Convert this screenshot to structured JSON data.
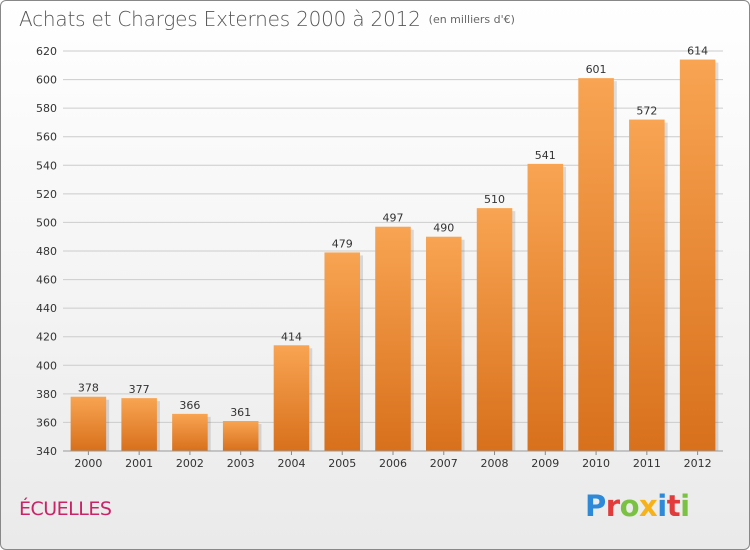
{
  "header": {
    "title": "Achats et Charges Externes 2000 à 2012",
    "subtitle": "(en milliers d'€)"
  },
  "footer": {
    "town": "ÉCUELLES",
    "logo_text": "Proxiti",
    "logo_letter_colors": [
      "#2e8ad8",
      "#e23b3b",
      "#7cc242",
      "#f7b219",
      "#2e8ad8",
      "#e23b3b",
      "#7cc242"
    ]
  },
  "colors": {
    "bar_top": "#f8a452",
    "bar_bottom": "#d8701c",
    "grid": "#cccccc",
    "axis_text": "#333333"
  },
  "chart_data": {
    "type": "bar",
    "categories": [
      "2000",
      "2001",
      "2002",
      "2003",
      "2004",
      "2005",
      "2006",
      "2007",
      "2008",
      "2009",
      "2010",
      "2011",
      "2012"
    ],
    "values": [
      378,
      377,
      366,
      361,
      414,
      479,
      497,
      490,
      510,
      541,
      601,
      572,
      614
    ],
    "title": "Achats et Charges Externes 2000 à 2012",
    "subtitle": "(en milliers d'€)",
    "xlabel": "",
    "ylabel": "",
    "ylim": [
      340,
      620
    ],
    "yticks": [
      340,
      360,
      380,
      400,
      420,
      440,
      460,
      480,
      500,
      520,
      540,
      560,
      580,
      600,
      620
    ],
    "grid": true,
    "data_labels": true
  }
}
